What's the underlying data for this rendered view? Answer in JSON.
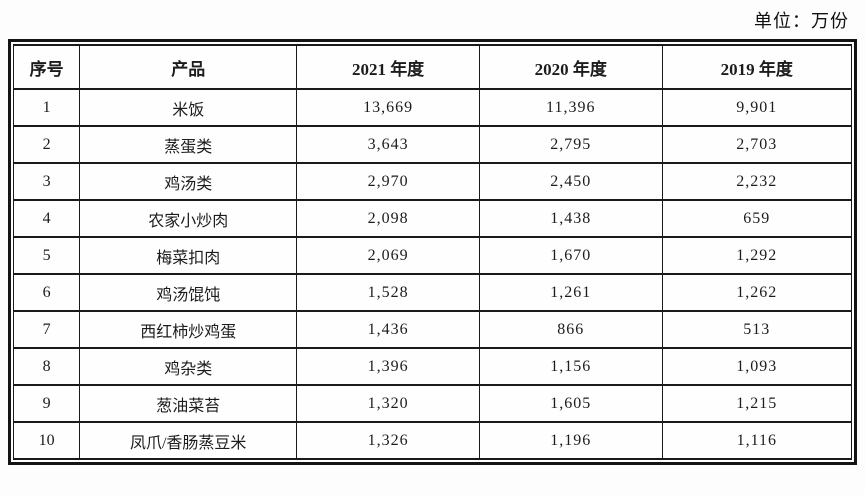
{
  "page": {
    "unit_label": "单位：万份"
  },
  "table": {
    "headers": [
      "序号",
      "产品",
      "2021 年度",
      "2020 年度",
      "2019 年度"
    ],
    "rows": [
      [
        "1",
        "米饭",
        "13,669",
        "11,396",
        "9,901"
      ],
      [
        "2",
        "蒸蛋类",
        "3,643",
        "2,795",
        "2,703"
      ],
      [
        "3",
        "鸡汤类",
        "2,970",
        "2,450",
        "2,232"
      ],
      [
        "4",
        "农家小炒肉",
        "2,098",
        "1,438",
        "659"
      ],
      [
        "5",
        "梅菜扣肉",
        "2,069",
        "1,670",
        "1,292"
      ],
      [
        "6",
        "鸡汤馄饨",
        "1,528",
        "1,261",
        "1,262"
      ],
      [
        "7",
        "西红柿炒鸡蛋",
        "1,436",
        "866",
        "513"
      ],
      [
        "8",
        "鸡杂类",
        "1,396",
        "1,156",
        "1,093"
      ],
      [
        "9",
        "葱油菜苔",
        "1,320",
        "1,605",
        "1,215"
      ],
      [
        "10",
        "凤爪/香肠蒸豆米",
        "1,326",
        "1,196",
        "1,116"
      ]
    ]
  },
  "colors": {
    "border": "#1a1a1a",
    "outer_border": "#141414",
    "text": "#1c1c1c",
    "background": "#fdfdfd",
    "cell_background": "#fefefe"
  }
}
